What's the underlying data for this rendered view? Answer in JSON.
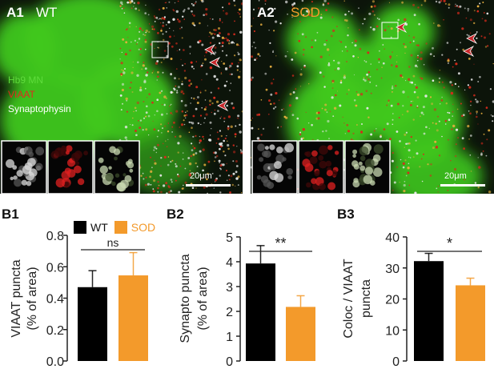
{
  "panels": {
    "a1": {
      "label": "A1",
      "condition": "WT",
      "condition_color": "#ffffff",
      "legend": [
        "Hb9 MN",
        "VIAAT",
        "Synaptophysin"
      ],
      "legend_colors": [
        "#5fdc3c",
        "#e02a1e",
        "#ffffff"
      ],
      "scale": "20μm"
    },
    "a2": {
      "label": "A2",
      "condition": "SOD",
      "condition_color": "#f39a2b",
      "scale": "20μm"
    }
  },
  "charts": {
    "b1": {
      "label": "B1"
    },
    "b2": {
      "label": "B2"
    },
    "b3": {
      "label": "B3"
    }
  },
  "legend": {
    "wt": "WT",
    "sod": "SOD",
    "wt_color": "#000000",
    "sod_color": "#f39a2b"
  },
  "chart_data": [
    {
      "type": "bar",
      "categories": [
        "WT",
        "SOD"
      ],
      "values": [
        0.47,
        0.545
      ],
      "errors": [
        0.105,
        0.145
      ],
      "ylabel_lines": [
        "VIAAT puncta",
        "(% of area)"
      ],
      "ylim": [
        0,
        0.8
      ],
      "ticks": [
        "0.0",
        "0.2",
        "0.4",
        "0.6",
        "0.8"
      ],
      "significance": "ns"
    },
    {
      "type": "bar",
      "categories": [
        "WT",
        "SOD"
      ],
      "values": [
        3.93,
        2.18
      ],
      "errors": [
        0.72,
        0.45
      ],
      "ylabel_lines": [
        "Synapto puncta",
        "(% of area)"
      ],
      "ylim": [
        0,
        5
      ],
      "ticks": [
        "0",
        "1",
        "2",
        "3",
        "4",
        "5"
      ],
      "significance": "**"
    },
    {
      "type": "bar",
      "categories": [
        "WT",
        "SOD"
      ],
      "values": [
        32.2,
        24.4
      ],
      "errors": [
        2.5,
        2.3
      ],
      "ylabel_lines": [
        "Coloc / VIAAT",
        "puncta"
      ],
      "ylim": [
        0,
        40
      ],
      "ticks": [
        "0",
        "10",
        "20",
        "30",
        "40"
      ],
      "significance": "*"
    }
  ]
}
